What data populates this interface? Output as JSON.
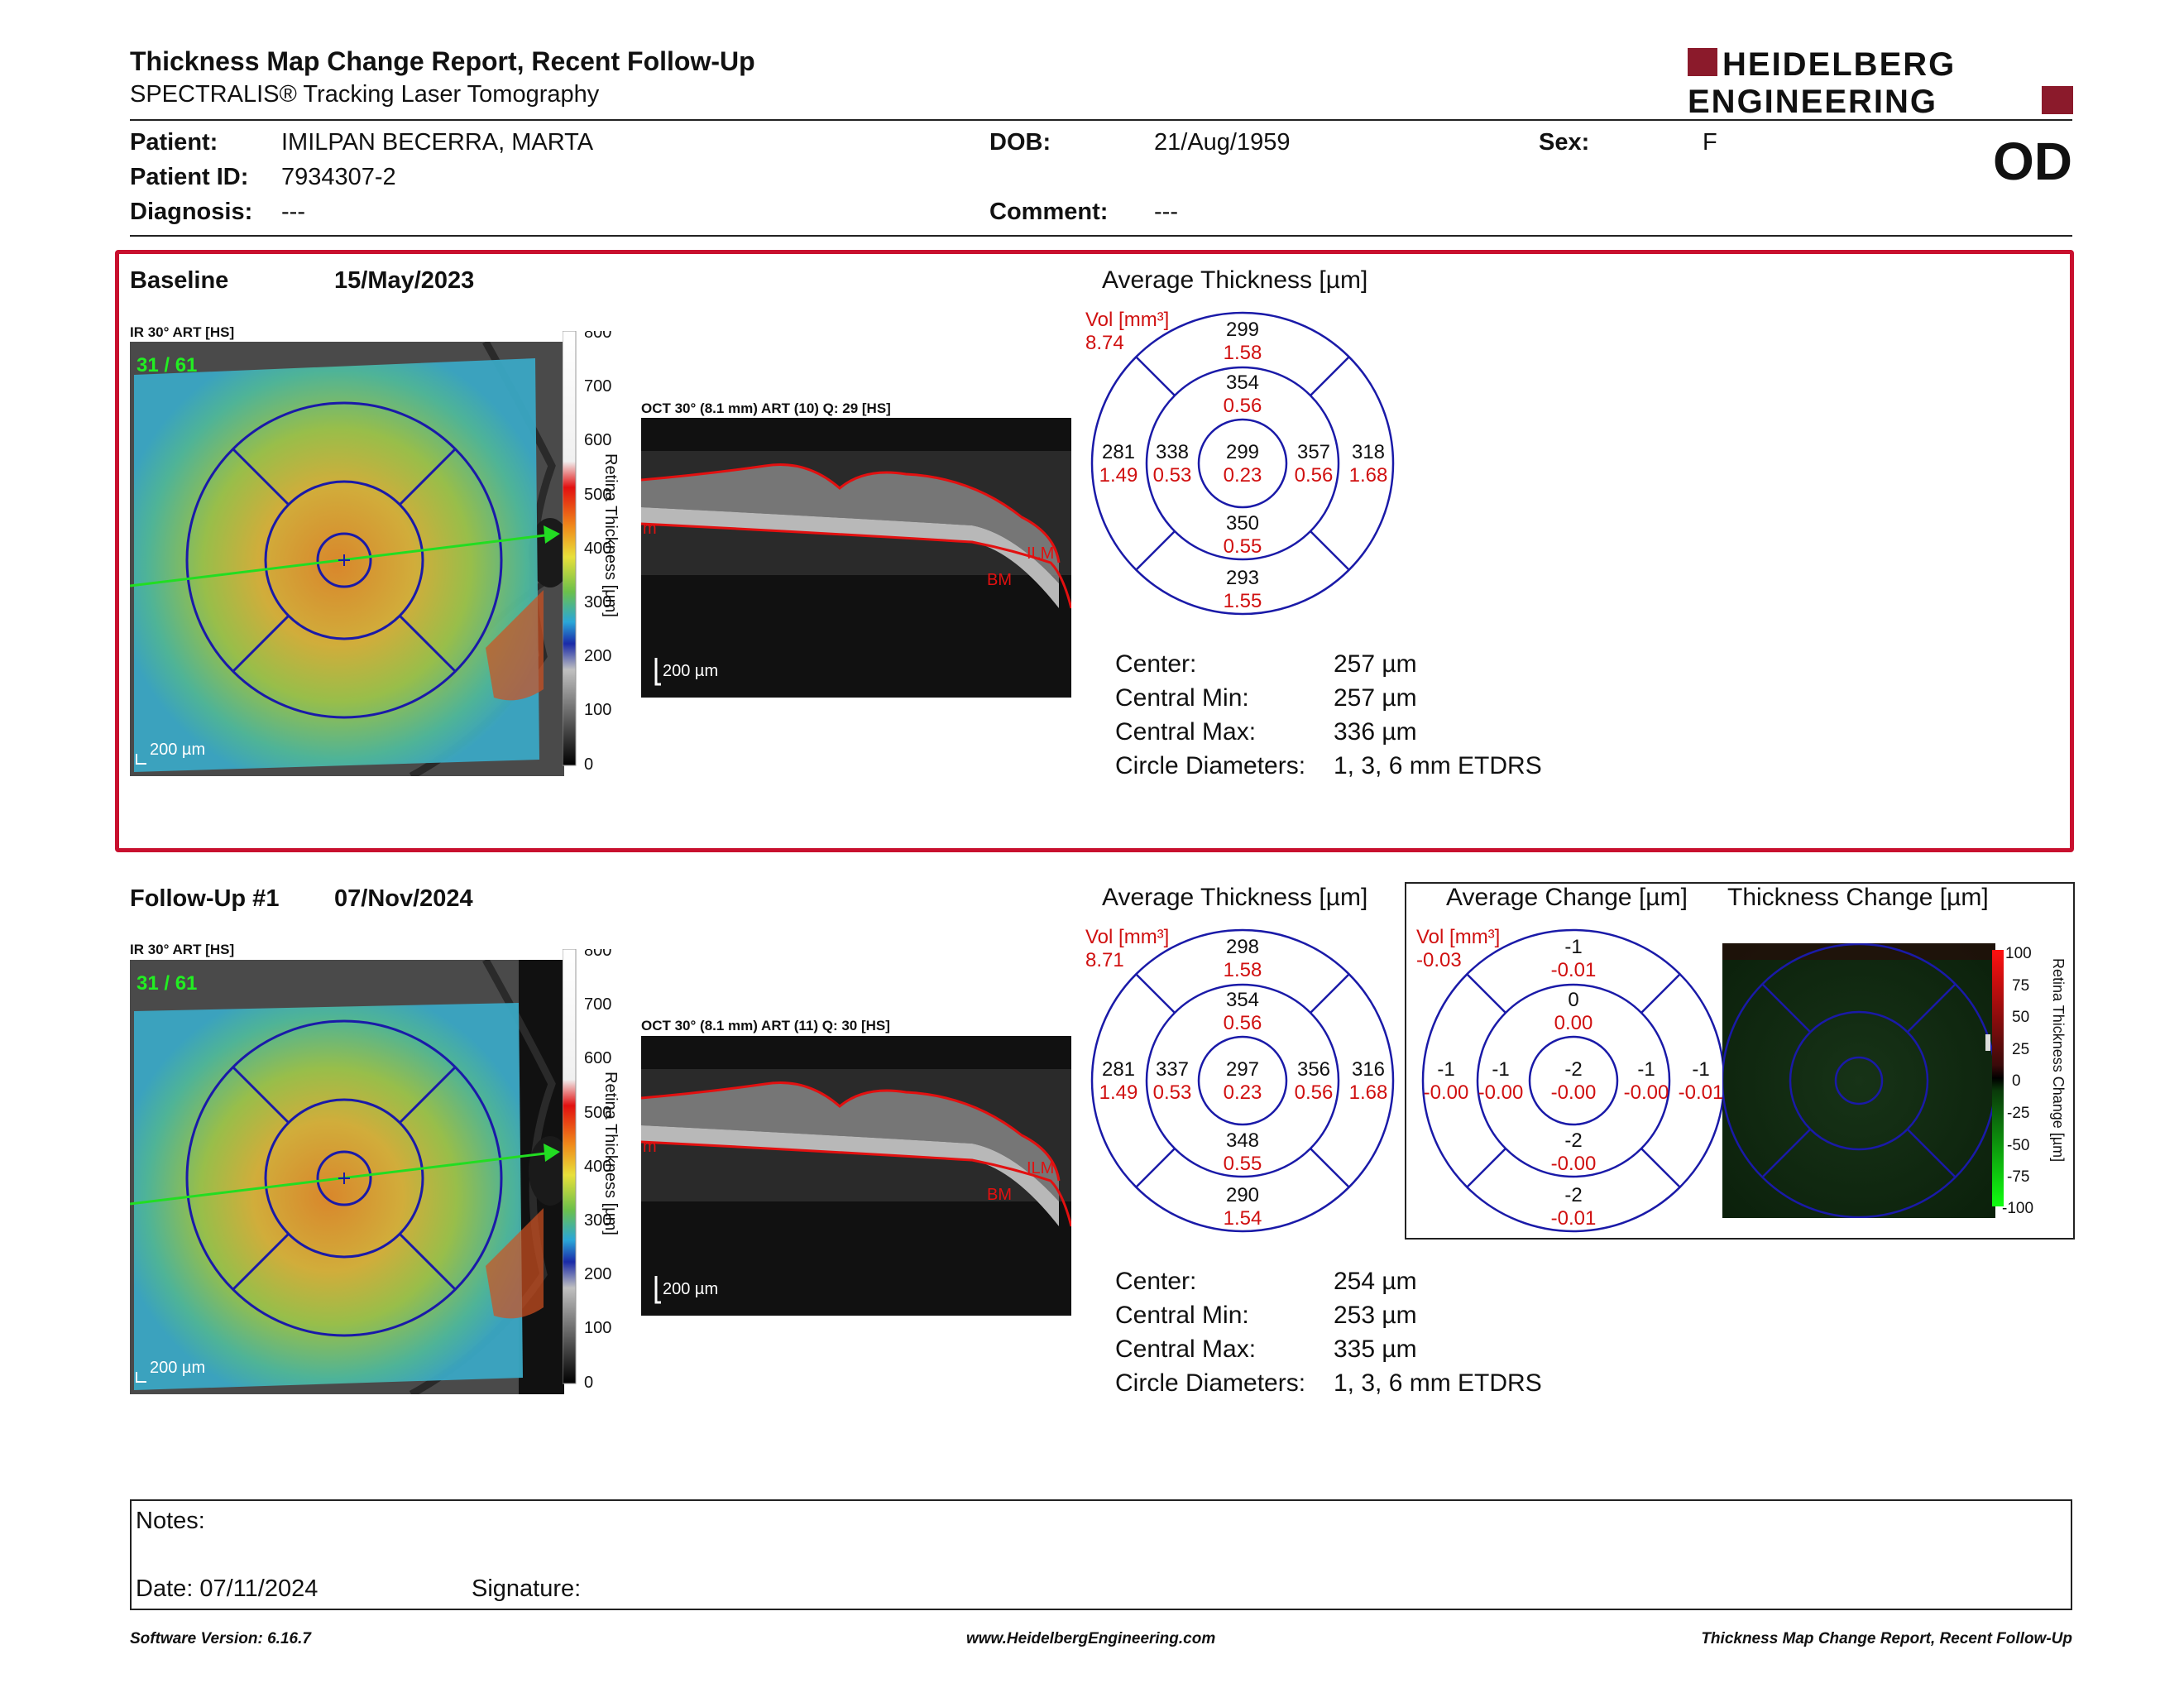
{
  "header": {
    "title": "Thickness Map Change Report, Recent Follow-Up",
    "subtitle": "SPECTRALIS® Tracking Laser Tomography",
    "logo_line1": "HEIDELBERG",
    "logo_line2": "ENGINEERING",
    "brand_color": "#8b1a2b"
  },
  "patient": {
    "patient_label": "Patient:",
    "patient_value": "IMILPAN BECERRA, MARTA",
    "id_label": "Patient ID:",
    "id_value": "7934307-2",
    "diagnosis_label": "Diagnosis:",
    "diagnosis_value": "---",
    "dob_label": "DOB:",
    "dob_value": "21/Aug/1959",
    "comment_label": "Comment:",
    "comment_value": "---",
    "sex_label": "Sex:",
    "sex_value": "F",
    "eye": "OD"
  },
  "baseline": {
    "label": "Baseline",
    "date": "15/May/2023",
    "ir_caption": "IR 30° ART [HS]",
    "frame_count": "31 / 61",
    "scale_label": "200 µm",
    "oct_caption": "OCT 30° (8.1 mm) ART (10) Q: 29 [HS]",
    "oct_scale": "200 µm",
    "layer_labels": [
      "ILM",
      "BM",
      "m"
    ],
    "colorbar_ticks": [
      "800",
      "700",
      "600",
      "500",
      "400",
      "300",
      "200",
      "100",
      "0"
    ],
    "colorbar_title": "Retina Thickness [µm]",
    "avg_title": "Average Thickness [µm]",
    "vol_label": "Vol [mm³]",
    "vol_total": "8.74",
    "grid": {
      "outer_top": [
        "299",
        "1.58"
      ],
      "inner_top": [
        "354",
        "0.56"
      ],
      "outer_left": [
        "281",
        "1.49"
      ],
      "inner_left": [
        "338",
        "0.53"
      ],
      "center": [
        "299",
        "0.23"
      ],
      "inner_right": [
        "357",
        "0.56"
      ],
      "outer_right": [
        "318",
        "1.68"
      ],
      "inner_bottom": [
        "350",
        "0.55"
      ],
      "outer_bottom": [
        "293",
        "1.55"
      ]
    },
    "stats": [
      {
        "label": "Center:",
        "value": "257 µm"
      },
      {
        "label": "Central Min:",
        "value": "257 µm"
      },
      {
        "label": "Central Max:",
        "value": "336 µm"
      },
      {
        "label": "Circle Diameters:",
        "value": "1, 3, 6 mm ETDRS"
      }
    ]
  },
  "followup": {
    "label": "Follow-Up #1",
    "date": "07/Nov/2024",
    "ir_caption": "IR 30° ART [HS]",
    "frame_count": "31 / 61",
    "scale_label": "200 µm",
    "oct_caption": "OCT 30° (8.1 mm) ART (11) Q: 30 [HS]",
    "oct_scale": "200 µm",
    "layer_labels": [
      "ILM",
      "BM",
      "m"
    ],
    "colorbar_ticks": [
      "800",
      "700",
      "600",
      "500",
      "400",
      "300",
      "200",
      "100",
      "0"
    ],
    "colorbar_title": "Retina Thickness [µm]",
    "avg_title": "Average Thickness [µm]",
    "vol_label": "Vol [mm³]",
    "vol_total": "8.71",
    "grid": {
      "outer_top": [
        "298",
        "1.58"
      ],
      "inner_top": [
        "354",
        "0.56"
      ],
      "outer_left": [
        "281",
        "1.49"
      ],
      "inner_left": [
        "337",
        "0.53"
      ],
      "center": [
        "297",
        "0.23"
      ],
      "inner_right": [
        "356",
        "0.56"
      ],
      "outer_right": [
        "316",
        "1.68"
      ],
      "inner_bottom": [
        "348",
        "0.55"
      ],
      "outer_bottom": [
        "290",
        "1.54"
      ]
    },
    "stats": [
      {
        "label": "Center:",
        "value": "254 µm"
      },
      {
        "label": "Central Min:",
        "value": "253 µm"
      },
      {
        "label": "Central Max:",
        "value": "335 µm"
      },
      {
        "label": "Circle Diameters:",
        "value": "1, 3, 6 mm ETDRS"
      }
    ]
  },
  "change": {
    "avg_title": "Average Change [µm]",
    "map_title": "Thickness Change [µm]",
    "vol_label": "Vol [mm³]",
    "vol_total": "-0.03",
    "grid": {
      "outer_top": [
        "-1",
        "-0.01"
      ],
      "inner_top": [
        "0",
        "0.00"
      ],
      "outer_left": [
        "-1",
        "-0.00"
      ],
      "inner_left": [
        "-1",
        "-0.00"
      ],
      "center": [
        "-2",
        "-0.00"
      ],
      "inner_right": [
        "-1",
        "-0.00"
      ],
      "outer_right": [
        "-1",
        "-0.01"
      ],
      "inner_bottom": [
        "-2",
        "-0.00"
      ],
      "outer_bottom": [
        "-2",
        "-0.01"
      ]
    },
    "colorbar_ticks": [
      "100",
      "75",
      "50",
      "25",
      "0",
      "-25",
      "-50",
      "-75",
      "-100"
    ],
    "colorbar_title": "Retina Thickness Change [µm]"
  },
  "notes": {
    "notes_label": "Notes:",
    "date_label": "Date: 07/11/2024",
    "signature_label": "Signature:"
  },
  "footer": {
    "version": "Software Version: 6.16.7",
    "website": "www.HeidelbergEngineering.com",
    "report_name": "Thickness Map Change Report, Recent Follow-Up"
  },
  "colors": {
    "accent_red": "#c8102e",
    "grid_blue": "#1a1aa8",
    "volume_red": "#d01010"
  }
}
